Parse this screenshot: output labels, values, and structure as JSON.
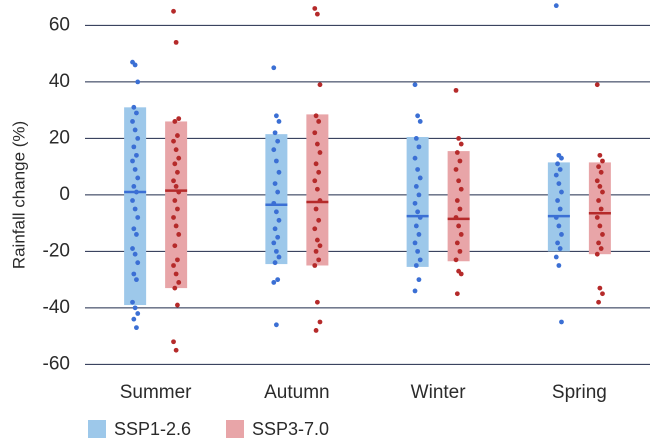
{
  "chart_data": {
    "type": "range-strip",
    "y_label": "Rainfall change (%)",
    "categories": [
      "Summer",
      "Autumn",
      "Winter",
      "Spring"
    ],
    "ylim": [
      -62,
      69
    ],
    "yticks": [
      -60,
      -40,
      -20,
      0,
      20,
      40,
      60
    ],
    "grid": true,
    "series": [
      {
        "name": "SSP1-2.6",
        "color": "#9dc8ea",
        "marker_color": "#3b6fd4",
        "low": [
          -39,
          -24.5,
          -25.5,
          -20
        ],
        "high": [
          31,
          21.5,
          20.5,
          11.5
        ],
        "median": [
          1,
          -3.5,
          -7.5,
          -7.5
        ],
        "points": [
          [
            47,
            46,
            40,
            31,
            29,
            26,
            23,
            20,
            17,
            14,
            12,
            9,
            6,
            3,
            1,
            -2,
            -5,
            -8,
            -12,
            -14,
            -19,
            -21,
            -24,
            -28,
            -30,
            -38,
            -40,
            -42,
            -44,
            -47
          ],
          [
            45,
            28,
            26,
            22,
            19,
            16,
            12,
            8,
            4,
            1,
            -3,
            -6,
            -9,
            -12,
            -15,
            -17,
            -20,
            -22,
            -24,
            -30,
            -31,
            -46
          ],
          [
            39,
            28,
            26,
            20,
            17,
            13,
            9,
            6,
            3,
            0,
            -3,
            -6,
            -8,
            -11,
            -14,
            -17,
            -20,
            -23,
            -25,
            -30,
            -34
          ],
          [
            67,
            14,
            13,
            11,
            9,
            7,
            4,
            1,
            -2,
            -5,
            -8,
            -11,
            -14,
            -17,
            -19,
            -22,
            -25,
            -45
          ]
        ]
      },
      {
        "name": "SSP3-7.0",
        "color": "#e8a5a8",
        "marker_color": "#b52a2a",
        "low": [
          -33,
          -25,
          -23.5,
          -21
        ],
        "high": [
          26,
          28.5,
          15.5,
          11.5
        ],
        "median": [
          1.5,
          -2.5,
          -8.5,
          -6.5
        ],
        "points": [
          [
            65,
            54,
            27,
            26,
            21,
            19,
            16,
            13,
            11,
            8,
            5,
            3,
            1,
            -2,
            -5,
            -8,
            -11,
            -14,
            -18,
            -23,
            -25,
            -28,
            -31,
            -33,
            -39,
            -52,
            -55
          ],
          [
            66,
            64,
            39,
            28,
            26,
            22,
            18,
            15,
            11,
            8,
            5,
            2,
            -2,
            -5,
            -9,
            -12,
            -16,
            -18,
            -20,
            -23,
            -25,
            -38,
            -45,
            -48
          ],
          [
            37,
            20,
            18,
            15,
            12,
            9,
            5,
            2,
            -2,
            -5,
            -8,
            -11,
            -14,
            -17,
            -20,
            -23,
            -27,
            -28,
            -35
          ],
          [
            39,
            14,
            12,
            10,
            8,
            5,
            3,
            1,
            -2,
            -5,
            -8,
            -11,
            -14,
            -17,
            -19,
            -21,
            -33,
            -35,
            -38
          ]
        ]
      }
    ]
  }
}
